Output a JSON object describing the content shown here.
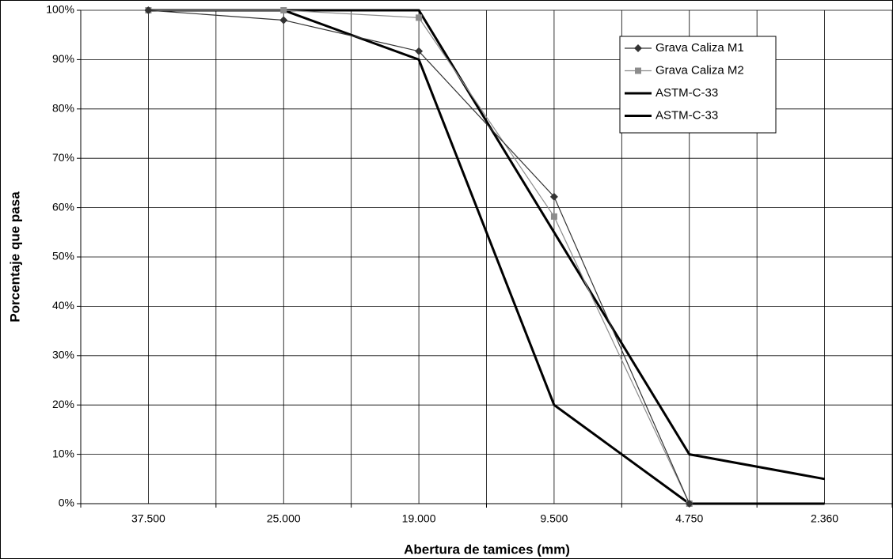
{
  "chart_data": {
    "type": "line",
    "x_label": "Abertura de tamices (mm)",
    "y_label": "Porcentaje que pasa",
    "categories": [
      "37.500",
      "25.000",
      "19.000",
      "9.500",
      "4.750",
      "2.360"
    ],
    "ylim": [
      0,
      100
    ],
    "yticks": [
      {
        "value": 0,
        "label": "0%"
      },
      {
        "value": 10,
        "label": "10%"
      },
      {
        "value": 20,
        "label": "20%"
      },
      {
        "value": 30,
        "label": "30%"
      },
      {
        "value": 40,
        "label": "40%"
      },
      {
        "value": 50,
        "label": "50%"
      },
      {
        "value": 60,
        "label": "60%"
      },
      {
        "value": 70,
        "label": "70%"
      },
      {
        "value": 80,
        "label": "80%"
      },
      {
        "value": 90,
        "label": "90%"
      },
      {
        "value": 100,
        "label": "100%"
      }
    ],
    "grid": true,
    "legend": "upper right",
    "series": [
      {
        "name": "Grava Caliza M1",
        "color": "#333333",
        "marker": "diamond",
        "linewidth": 1.2,
        "values": [
          100,
          98,
          91.7,
          62.2,
          0,
          null
        ]
      },
      {
        "name": "Grava Caliza M2",
        "color": "#8c8c8c",
        "marker": "square",
        "linewidth": 1.2,
        "values": [
          100,
          100,
          98.5,
          58.2,
          0,
          null
        ]
      },
      {
        "name": "ASTM-C-33",
        "color": "#000000",
        "marker": "none",
        "linewidth": 3,
        "values": [
          100,
          100,
          100,
          55,
          10,
          5
        ]
      },
      {
        "name": "ASTM-C-33",
        "color": "#000000",
        "marker": "none",
        "linewidth": 3,
        "values": [
          100,
          100,
          90,
          20,
          0,
          0
        ]
      }
    ]
  }
}
